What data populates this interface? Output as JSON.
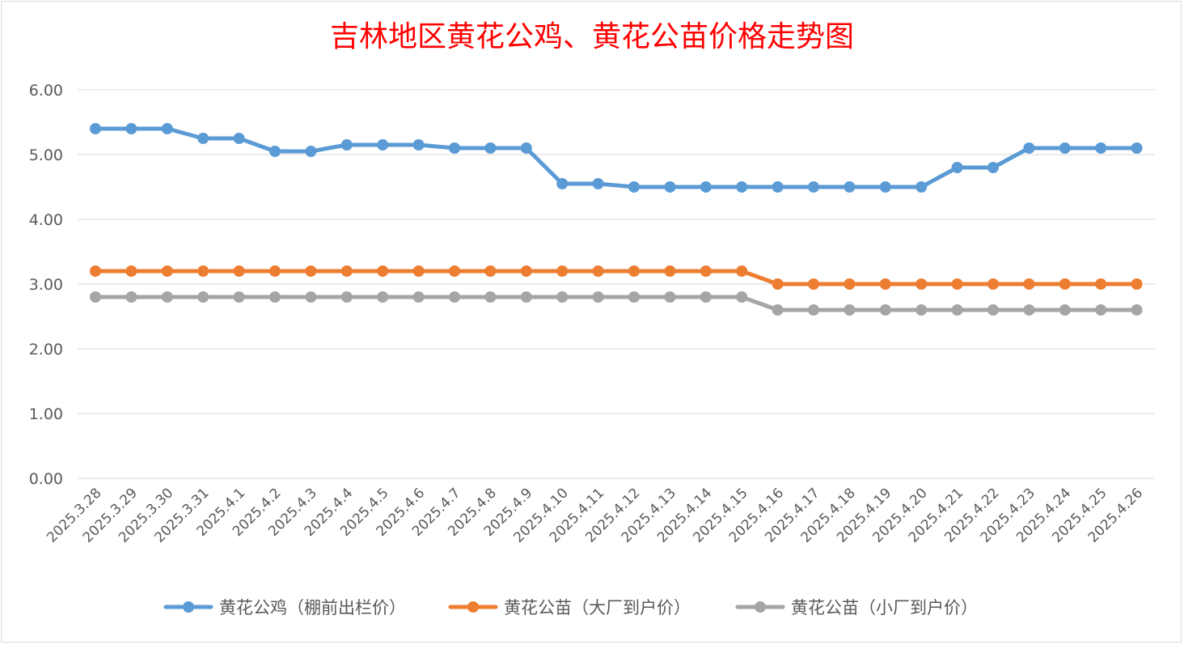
{
  "chart_data": {
    "type": "line",
    "title": "吉林地区黄花公鸡、黄花公苗价格走势图",
    "xlabel": "",
    "ylabel": "",
    "ylim": [
      0,
      6
    ],
    "ytick_labels": [
      "0.00",
      "1.00",
      "2.00",
      "3.00",
      "4.00",
      "5.00",
      "6.00"
    ],
    "grid": true,
    "legend_position": "bottom",
    "categories": [
      "2025.3.28",
      "2025.3.29",
      "2025.3.30",
      "2025.3.31",
      "2025.4.1",
      "2025.4.2",
      "2025.4.3",
      "2025.4.4",
      "2025.4.5",
      "2025.4.6",
      "2025.4.7",
      "2025.4.8",
      "2025.4.9",
      "2025.4.10",
      "2025.4.11",
      "2025.4.12",
      "2025.4.13",
      "2025.4.14",
      "2025.4.15",
      "2025.4.16",
      "2025.4.17",
      "2025.4.18",
      "2025.4.19",
      "2025.4.20",
      "2025.4.21",
      "2025.4.22",
      "2025.4.23",
      "2025.4.24",
      "2025.4.25",
      "2025.4.26"
    ],
    "series": [
      {
        "name": "黄花公鸡（棚前出栏价）",
        "color": "#5b9bd5",
        "values": [
          5.4,
          5.4,
          5.4,
          5.25,
          5.25,
          5.05,
          5.05,
          5.15,
          5.15,
          5.15,
          5.1,
          5.1,
          5.1,
          4.55,
          4.55,
          4.5,
          4.5,
          4.5,
          4.5,
          4.5,
          4.5,
          4.5,
          4.5,
          4.5,
          4.8,
          4.8,
          5.1,
          5.1,
          5.1,
          5.1
        ]
      },
      {
        "name": "黄花公苗（大厂到户价）",
        "color": "#ed7d31",
        "values": [
          3.2,
          3.2,
          3.2,
          3.2,
          3.2,
          3.2,
          3.2,
          3.2,
          3.2,
          3.2,
          3.2,
          3.2,
          3.2,
          3.2,
          3.2,
          3.2,
          3.2,
          3.2,
          3.2,
          3.0,
          3.0,
          3.0,
          3.0,
          3.0,
          3.0,
          3.0,
          3.0,
          3.0,
          3.0,
          3.0
        ]
      },
      {
        "name": "黄花公苗（小厂到户价）",
        "color": "#a5a5a5",
        "values": [
          2.8,
          2.8,
          2.8,
          2.8,
          2.8,
          2.8,
          2.8,
          2.8,
          2.8,
          2.8,
          2.8,
          2.8,
          2.8,
          2.8,
          2.8,
          2.8,
          2.8,
          2.8,
          2.8,
          2.6,
          2.6,
          2.6,
          2.6,
          2.6,
          2.6,
          2.6,
          2.6,
          2.6,
          2.6,
          2.6
        ]
      }
    ]
  }
}
